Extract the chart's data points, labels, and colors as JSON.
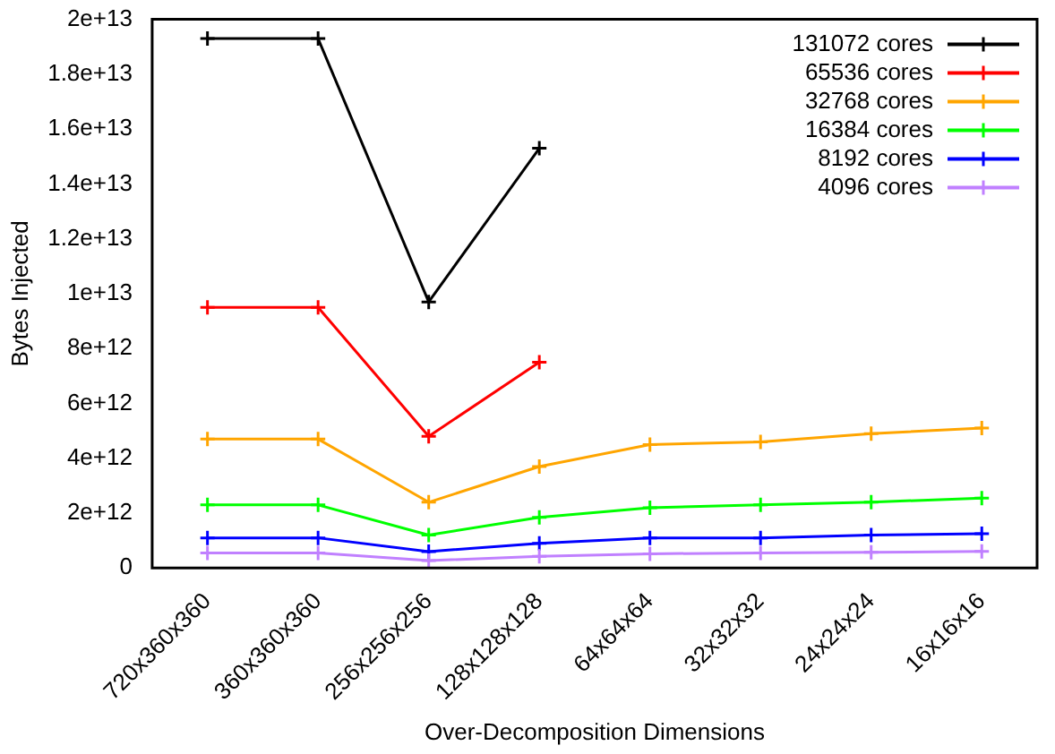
{
  "chart_data": {
    "type": "line",
    "xlabel": "Over-Decomposition Dimensions",
    "ylabel": "Bytes Injected",
    "categories": [
      "720x360x360",
      "360x360x360",
      "256x256x256",
      "128x128x128",
      "64x64x64",
      "32x32x32",
      "24x24x24",
      "16x16x16"
    ],
    "series": [
      {
        "name": "131072 cores",
        "color": "#000000",
        "values": [
          19300000000000.0,
          19300000000000.0,
          9700000000000.0,
          15300000000000.0,
          null,
          null,
          null,
          null
        ]
      },
      {
        "name": "65536 cores",
        "color": "#ff0000",
        "values": [
          9500000000000.0,
          9500000000000.0,
          4800000000000.0,
          7500000000000.0,
          null,
          null,
          null,
          null
        ]
      },
      {
        "name": "32768 cores",
        "color": "#ffa500",
        "values": [
          4700000000000.0,
          4700000000000.0,
          2400000000000.0,
          3700000000000.0,
          4500000000000.0,
          4600000000000.0,
          4900000000000.0,
          5100000000000.0
        ]
      },
      {
        "name": "16384 cores",
        "color": "#00ff00",
        "values": [
          2300000000000.0,
          2300000000000.0,
          1200000000000.0,
          1850000000000.0,
          2200000000000.0,
          2300000000000.0,
          2400000000000.0,
          2550000000000.0
        ]
      },
      {
        "name": "8192 cores",
        "color": "#0000ff",
        "values": [
          1100000000000.0,
          1100000000000.0,
          600000000000.0,
          900000000000.0,
          1100000000000.0,
          1100000000000.0,
          1200000000000.0,
          1250000000000.0
        ]
      },
      {
        "name": "4096 cores",
        "color": "#c080ff",
        "values": [
          550000000000.0,
          550000000000.0,
          270000000000.0,
          430000000000.0,
          520000000000.0,
          550000000000.0,
          570000000000.0,
          610000000000.0
        ]
      }
    ],
    "ylim": [
      0,
      20000000000000.0
    ],
    "yticks": [
      0,
      {
        "value": 2000000000000.0,
        "label": "2e+12"
      },
      {
        "value": 4000000000000.0,
        "label": "4e+12"
      },
      {
        "value": 6000000000000.0,
        "label": "6e+12"
      },
      {
        "value": 8000000000000.0,
        "label": "8e+12"
      },
      {
        "value": 10000000000000.0,
        "label": "1e+13"
      },
      {
        "value": 12000000000000.0,
        "label": "1.2e+13"
      },
      {
        "value": 14000000000000.0,
        "label": "1.4e+13"
      },
      {
        "value": 16000000000000.0,
        "label": "1.6e+13"
      },
      {
        "value": 18000000000000.0,
        "label": "1.8e+13"
      },
      {
        "value": 20000000000000.0,
        "label": "2e+13"
      }
    ],
    "grid": false,
    "legend": "top right",
    "marker": "cross",
    "line_style": "solid"
  }
}
